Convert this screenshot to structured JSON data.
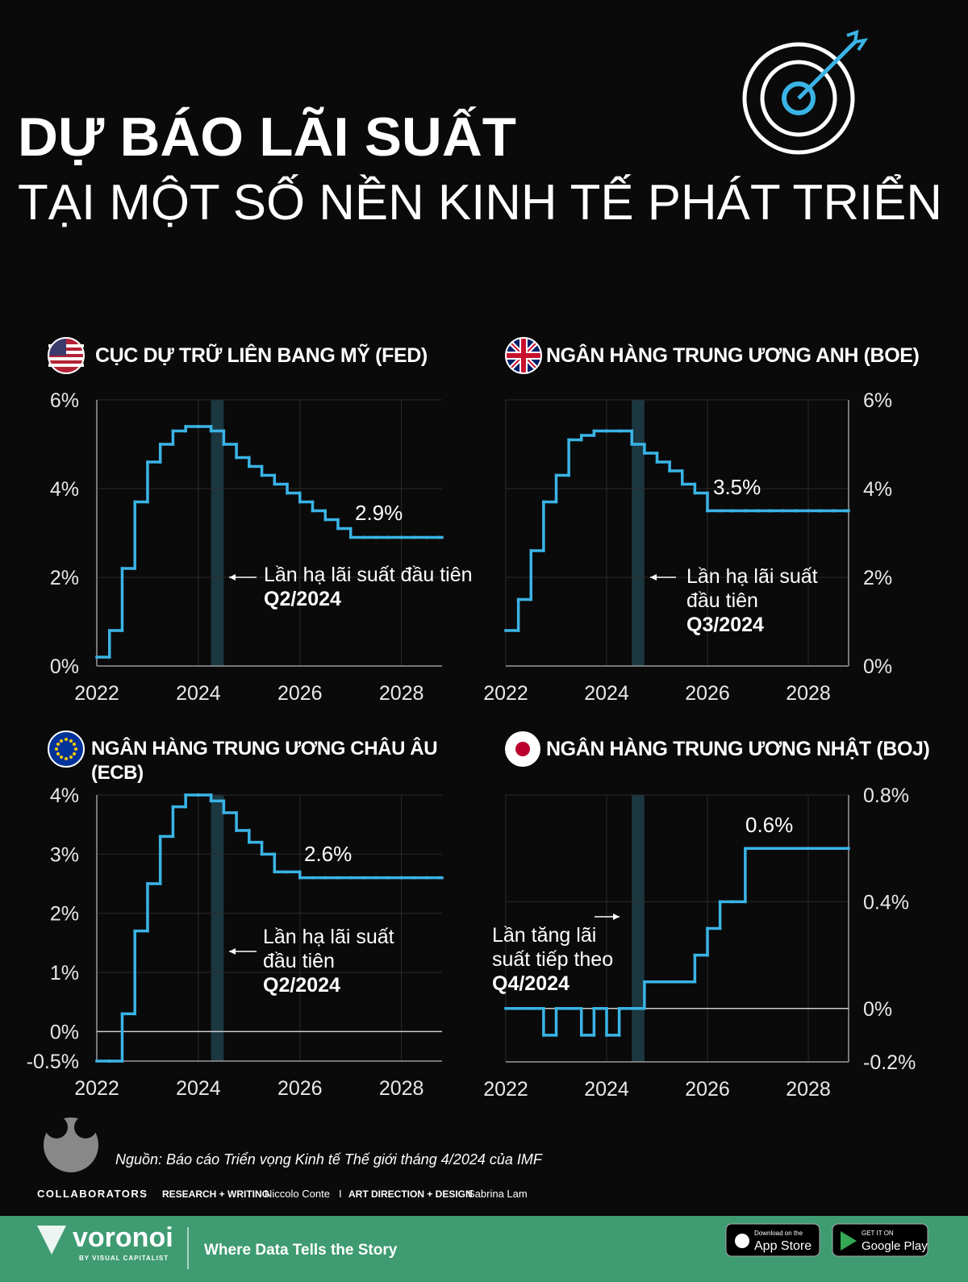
{
  "header": {
    "title": "DỰ BÁO LÃI SUẤT",
    "subtitle": "TẠI MỘT SỐ NỀN KINH TẾ PHÁT TRIỂN"
  },
  "chart_data": [
    {
      "type": "step",
      "title": "CỤC DỰ TRỮ LIÊN BANG MỸ (FED)",
      "color": "#3ab4e6",
      "x": [
        2022,
        2022.25,
        2022.5,
        2022.75,
        2023,
        2023.25,
        2023.5,
        2023.75,
        2024,
        2024.25,
        2024.5,
        2024.75,
        2025,
        2025.25,
        2025.5,
        2025.75,
        2026,
        2026.25,
        2026.5,
        2026.75,
        2027,
        2027.25,
        2027.5,
        2027.75,
        2028,
        2028.25,
        2028.5,
        2028.75
      ],
      "values": [
        0.2,
        0.8,
        2.2,
        3.7,
        4.6,
        5.0,
        5.3,
        5.4,
        5.4,
        5.3,
        5.0,
        4.7,
        4.5,
        4.3,
        4.1,
        3.9,
        3.7,
        3.5,
        3.3,
        3.1,
        2.9,
        2.9,
        2.9,
        2.9,
        2.9,
        2.9,
        2.9,
        2.9
      ],
      "xlim": [
        2022,
        2028.8
      ],
      "xticks": [
        2022,
        2024,
        2026,
        2028
      ],
      "ylim": [
        0,
        6
      ],
      "yticks": [
        {
          "value": 0,
          "label": "0%"
        },
        {
          "value": 2,
          "label": "2%"
        },
        {
          "value": 4,
          "label": "4%"
        },
        {
          "value": 6,
          "label": "6%"
        }
      ],
      "y_axis_side": "left",
      "zero_line": false,
      "highlight": [
        2024.25,
        2024.5
      ],
      "callout": "2.9%",
      "annotation": {
        "text": "Lần hạ lãi suất đầu tiên",
        "period": "Q2/2024"
      }
    },
    {
      "type": "step",
      "title": "NGÂN HÀNG TRUNG ƯƠNG ANH (BOE)",
      "color": "#3ab4e6",
      "x": [
        2022,
        2022.25,
        2022.5,
        2022.75,
        2023,
        2023.25,
        2023.5,
        2023.75,
        2024,
        2024.25,
        2024.5,
        2024.75,
        2025,
        2025.25,
        2025.5,
        2025.75,
        2026,
        2026.25,
        2026.5,
        2026.75,
        2027,
        2027.25,
        2027.5,
        2027.75,
        2028,
        2028.25,
        2028.5,
        2028.75
      ],
      "values": [
        0.8,
        1.5,
        2.6,
        3.7,
        4.3,
        5.1,
        5.2,
        5.3,
        5.3,
        5.3,
        5.0,
        4.8,
        4.6,
        4.4,
        4.1,
        3.9,
        3.5,
        3.5,
        3.5,
        3.5,
        3.5,
        3.5,
        3.5,
        3.5,
        3.5,
        3.5,
        3.5,
        3.5
      ],
      "xlim": [
        2022,
        2028.8
      ],
      "xticks": [
        2022,
        2024,
        2026,
        2028
      ],
      "ylim": [
        0,
        6
      ],
      "yticks": [
        {
          "value": 0,
          "label": "0%"
        },
        {
          "value": 2,
          "label": "2%"
        },
        {
          "value": 4,
          "label": "4%"
        },
        {
          "value": 6,
          "label": "6%"
        }
      ],
      "y_axis_side": "right",
      "zero_line": false,
      "highlight": [
        2024.5,
        2024.75
      ],
      "callout": "3.5%",
      "annotation": {
        "text": "Lần hạ lãi suất đầu tiên",
        "period": "Q3/2024"
      }
    },
    {
      "type": "step",
      "title": "NGÂN HÀNG TRUNG ƯƠNG CHÂU ÂU (ECB)",
      "color": "#3ab4e6",
      "x": [
        2022,
        2022.25,
        2022.5,
        2022.75,
        2023,
        2023.25,
        2023.5,
        2023.75,
        2024,
        2024.25,
        2024.5,
        2024.75,
        2025,
        2025.25,
        2025.5,
        2025.75,
        2026,
        2026.25,
        2026.5,
        2026.75,
        2027,
        2027.25,
        2027.5,
        2027.75,
        2028,
        2028.25,
        2028.5,
        2028.75
      ],
      "values": [
        -0.5,
        -0.5,
        0.3,
        1.7,
        2.5,
        3.3,
        3.8,
        4.0,
        4.0,
        3.9,
        3.7,
        3.4,
        3.2,
        3.0,
        2.7,
        2.7,
        2.6,
        2.6,
        2.6,
        2.6,
        2.6,
        2.6,
        2.6,
        2.6,
        2.6,
        2.6,
        2.6,
        2.6
      ],
      "xlim": [
        2022,
        2028.8
      ],
      "xticks": [
        2022,
        2024,
        2026,
        2028
      ],
      "ylim": [
        -0.5,
        4
      ],
      "yticks": [
        {
          "value": -0.5,
          "label": "-0.5%"
        },
        {
          "value": 0,
          "label": "0%"
        },
        {
          "value": 1,
          "label": "1%"
        },
        {
          "value": 2,
          "label": "2%"
        },
        {
          "value": 3,
          "label": "3%"
        },
        {
          "value": 4,
          "label": "4%"
        }
      ],
      "y_axis_side": "left",
      "zero_line": true,
      "highlight": [
        2024.25,
        2024.5
      ],
      "callout": "2.6%",
      "annotation": {
        "text": "Lần hạ lãi suất đầu tiên",
        "period": "Q2/2024"
      }
    },
    {
      "type": "step",
      "title": "NGÂN HÀNG TRUNG ƯƠNG NHẬT (BOJ)",
      "color": "#3ab4e6",
      "x": [
        2022,
        2022.25,
        2022.5,
        2022.75,
        2023,
        2023.25,
        2023.5,
        2023.75,
        2024,
        2024.25,
        2024.5,
        2024.75,
        2025,
        2025.25,
        2025.5,
        2025.75,
        2026,
        2026.25,
        2026.5,
        2026.75,
        2027,
        2027.25,
        2027.5,
        2027.75,
        2028,
        2028.25,
        2028.5,
        2028.75
      ],
      "values": [
        0,
        0,
        0,
        -0.1,
        0,
        0,
        -0.1,
        0,
        -0.1,
        0,
        0,
        0.1,
        0.1,
        0.1,
        0.1,
        0.2,
        0.3,
        0.4,
        0.4,
        0.6,
        0.6,
        0.6,
        0.6,
        0.6,
        0.6,
        0.6,
        0.6,
        0.6
      ],
      "xlim": [
        2022,
        2028.8
      ],
      "xticks": [
        2022,
        2024,
        2026,
        2028
      ],
      "ylim": [
        -0.2,
        0.8
      ],
      "yticks": [
        {
          "value": -0.2,
          "label": "-0.2%"
        },
        {
          "value": 0,
          "label": "0%"
        },
        {
          "value": 0.4,
          "label": "0.4%"
        },
        {
          "value": 0.8,
          "label": "0.8%"
        }
      ],
      "y_axis_side": "right",
      "zero_line": true,
      "highlight": [
        2024.5,
        2024.75
      ],
      "callout": "0.6%",
      "annotation": {
        "text": "Lần tăng lãi suất tiếp theo",
        "period": "Q4/2024"
      }
    }
  ],
  "footer": {
    "source": "Nguồn: Báo cáo Triển vọng Kinh tế Thế giới tháng 4/2024 của IMF",
    "collaborators": "COLLABORATORS",
    "role_1": "RESEARCH + WRITING",
    "name_1": "Niccolo Conte",
    "separator": "I",
    "role_2": "ART DIRECTION + DESIGN",
    "name_2": "Sabrina Lam",
    "brand": "voronoi",
    "brand_sub": "BY VISUAL CAPITALIST",
    "tagline": "Where Data Tells the Story",
    "app_store_small": "Download on the",
    "app_store": "App Store",
    "google_play_small": "GET IT ON",
    "google_play": "Google Play"
  }
}
